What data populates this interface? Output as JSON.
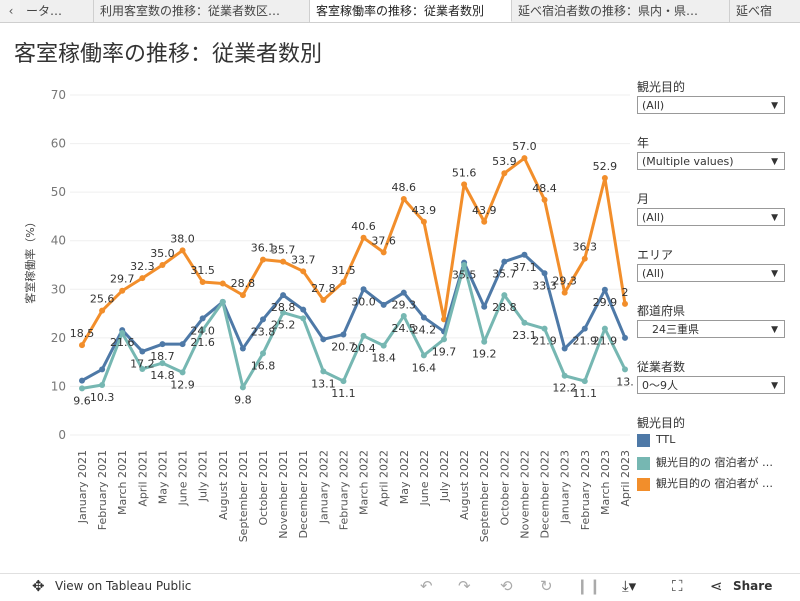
{
  "tabs": {
    "prev_label": "‹",
    "items": [
      {
        "label": "ータ…"
      },
      {
        "label": "利用客室数の推移：従業者数区…"
      },
      {
        "label": "客室稼働率の推移：従業者数別"
      },
      {
        "label": "延べ宿泊者数の推移：県内・県…"
      },
      {
        "label": "延べ宿"
      }
    ]
  },
  "title": "客室稼働率の推移：従業者数別",
  "filters": [
    {
      "label": "観光目的",
      "value": "(All)"
    },
    {
      "label": "年",
      "value": "(Multiple values)"
    },
    {
      "label": "月",
      "value": "(All)"
    },
    {
      "label": "エリア",
      "value": "(All)"
    },
    {
      "label": "都道府県",
      "value": "24三重県"
    },
    {
      "label": "従業者数",
      "value": "0～9人"
    }
  ],
  "legend": {
    "title": "観光目的",
    "items": [
      {
        "label": "TTL",
        "color": "#4e79a7"
      },
      {
        "label": "観光目的の 宿泊者が …",
        "color": "#76b7b2"
      },
      {
        "label": "観光目的の 宿泊者が …",
        "color": "#f28e2b"
      }
    ]
  },
  "toolbar": {
    "view_on": "View on Tableau Public",
    "share": "Share"
  },
  "chart_data": {
    "type": "line",
    "title": "客室稼働率の推移：従業者数別",
    "xlabel": "",
    "ylabel": "客室稼働率（%）",
    "ylim": [
      0,
      70
    ],
    "yticks": [
      0,
      10,
      20,
      30,
      40,
      50,
      60,
      70
    ],
    "categories": [
      "January 2021",
      "February 2021",
      "March 2021",
      "April 2021",
      "May 2021",
      "June 2021",
      "July 2021",
      "August 2021",
      "September 2021",
      "October 2021",
      "November 2021",
      "December 2021",
      "January 2022",
      "February 2022",
      "March 2022",
      "April 2022",
      "May 2022",
      "June 2022",
      "July 2022",
      "August 2022",
      "September 2022",
      "October 2022",
      "November 2022",
      "December 2022",
      "January 2023",
      "February 2023",
      "March 2023",
      "April 2023"
    ],
    "series": [
      {
        "name": "観光目的の 宿泊者が …(orange)",
        "color": "#f28e2b",
        "values": [
          18.5,
          25.6,
          29.7,
          32.3,
          35.0,
          38.0,
          31.5,
          31.2,
          28.8,
          36.1,
          35.7,
          33.7,
          27.8,
          31.5,
          40.6,
          37.6,
          48.6,
          43.9,
          23.8,
          51.6,
          43.9,
          53.9,
          57.0,
          48.4,
          29.3,
          36.3,
          52.9,
          27.0
        ],
        "labels": [
          "18.5",
          "25.6",
          "29.7",
          "32.3",
          "35.0",
          "38.0",
          "31.5",
          "",
          "28.8",
          "36.1",
          "35.7",
          "33.7",
          "27.8",
          "31.5",
          "40.6",
          "37.6",
          "48.6",
          "43.9",
          "",
          "51.6",
          "43.9",
          "53.9",
          "57.0",
          "48.4",
          "29.3",
          "36.3",
          "52.9",
          "2"
        ]
      },
      {
        "name": "TTL",
        "color": "#4e79a7",
        "values": [
          11.2,
          13.5,
          21.6,
          17.2,
          18.7,
          18.7,
          24.0,
          27.4,
          17.8,
          23.8,
          28.8,
          25.8,
          19.7,
          20.7,
          30.0,
          26.8,
          29.3,
          24.2,
          21.3,
          35.5,
          26.4,
          35.7,
          37.1,
          33.3,
          17.8,
          21.9,
          29.9,
          20.0
        ],
        "labels": [
          "",
          "",
          "21.6",
          "17.2",
          "18.7",
          "",
          "24.0",
          "",
          "",
          "23.8",
          "28.8",
          "",
          "",
          "20.7",
          "30.0",
          "",
          "29.3",
          "24.2",
          "",
          "35.5",
          "",
          "35.7",
          "37.1",
          "33.3",
          "",
          "21.9",
          "29.9",
          ""
        ]
      },
      {
        "name": "観光目的の 宿泊者が …(teal)",
        "color": "#76b7b2",
        "values": [
          9.6,
          10.3,
          21.0,
          13.6,
          14.8,
          12.9,
          21.6,
          27.4,
          9.8,
          16.8,
          25.2,
          24.0,
          13.1,
          11.1,
          20.4,
          18.4,
          24.5,
          16.4,
          19.7,
          35.0,
          19.2,
          28.8,
          23.1,
          21.9,
          12.2,
          11.1,
          21.9,
          13.5
        ],
        "labels": [
          "9.6",
          "10.3",
          "",
          "",
          "14.8",
          "12.9",
          "21.6",
          "",
          "9.8",
          "16.8",
          "25.2",
          "",
          "13.1",
          "11.1",
          "20.4",
          "18.4",
          "24.5",
          "16.4",
          "19.7",
          "",
          "19.2",
          "28.8",
          "23.1",
          "21.9",
          "12.2",
          "11.1",
          "21.9",
          "13."
        ]
      }
    ]
  }
}
